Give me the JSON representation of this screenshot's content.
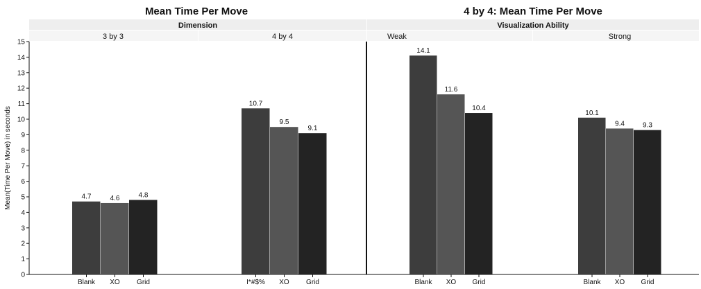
{
  "chart_data": [
    {
      "type": "bar",
      "title": "Mean Time Per Move",
      "facet_header": "Dimension",
      "ylabel": "Mean(Time Per Move) in seconds",
      "ylim": [
        0,
        15
      ],
      "yticks": [
        0,
        1,
        2,
        3,
        4,
        5,
        6,
        7,
        8,
        9,
        10,
        11,
        12,
        13,
        14,
        15
      ],
      "grid": false,
      "panels": [
        {
          "label": "3 by 3",
          "categories": [
            "Blank",
            "XO",
            "Grid"
          ],
          "values": [
            4.7,
            4.6,
            4.8
          ],
          "value_labels": [
            "4.7",
            "4.6",
            "4.8"
          ]
        },
        {
          "label": "4 by 4",
          "categories": [
            "I*#$%",
            "XO",
            "Grid"
          ],
          "values": [
            10.7,
            9.5,
            9.1
          ],
          "value_labels": [
            "10.7",
            "9.5",
            "9.1"
          ]
        }
      ]
    },
    {
      "type": "bar",
      "title": "4 by 4: Mean Time Per Move",
      "facet_header": "Visualization Ability",
      "ylim": [
        0,
        15
      ],
      "grid": false,
      "panels": [
        {
          "label": "Weak",
          "categories": [
            "Blank",
            "XO",
            "Grid"
          ],
          "values": [
            14.1,
            11.6,
            10.4
          ],
          "value_labels": [
            "14.1",
            "11.6",
            "10.4"
          ]
        },
        {
          "label": "Strong",
          "categories": [
            "Blank",
            "XO",
            "Grid"
          ],
          "values": [
            10.1,
            9.4,
            9.3
          ],
          "value_labels": [
            "10.1",
            "9.4",
            "9.3"
          ]
        }
      ]
    }
  ],
  "colors": {
    "bar_blank": "#3d3d3d",
    "bar_xo": "#555555",
    "bar_grid": "#232323",
    "header_bg": "#eeeeee",
    "axis": "#111111"
  }
}
